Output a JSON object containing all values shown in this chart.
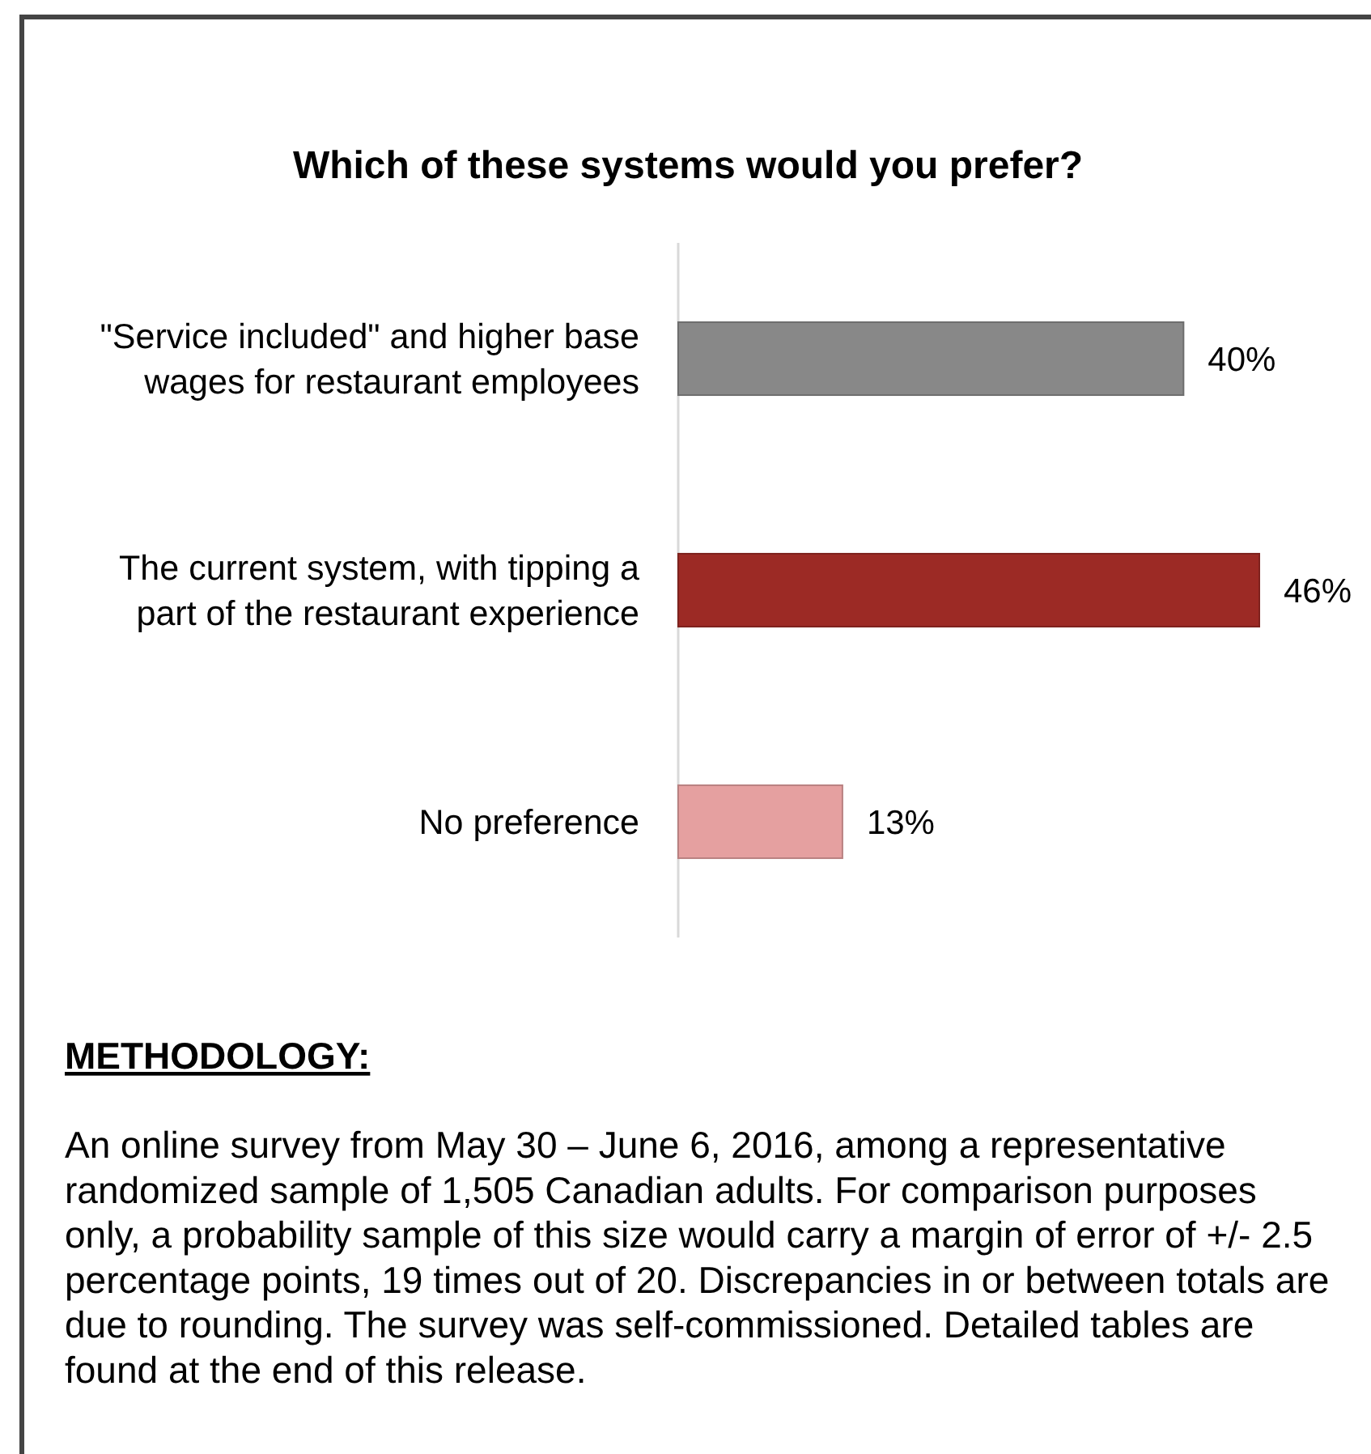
{
  "chart_data": {
    "type": "bar",
    "orientation": "horizontal",
    "title": "Which of these systems would you prefer?",
    "categories": [
      "\"Service included\" and higher base wages for restaurant employees",
      "The current system, with tipping a part of the restaurant experience",
      "No preference"
    ],
    "values": [
      40,
      46,
      13
    ],
    "colors": [
      "#888888",
      "#9c2a25",
      "#e5a0a0"
    ],
    "value_labels": [
      "40%",
      "46%",
      "13%"
    ],
    "annotations": [
      "METHODOLOGY:",
      "An online survey from May 30 – June 6, 2016, among a representative randomized sample of 1,505 Canadian adults. For comparison purposes only, a probability sample of this size would carry a margin of error of +/- 2.5 percentage points, 19 times out of 20. Discrepancies in or between totals are due to rounding. The survey was self-commissioned. Detailed tables are found at the end of this release."
    ]
  }
}
